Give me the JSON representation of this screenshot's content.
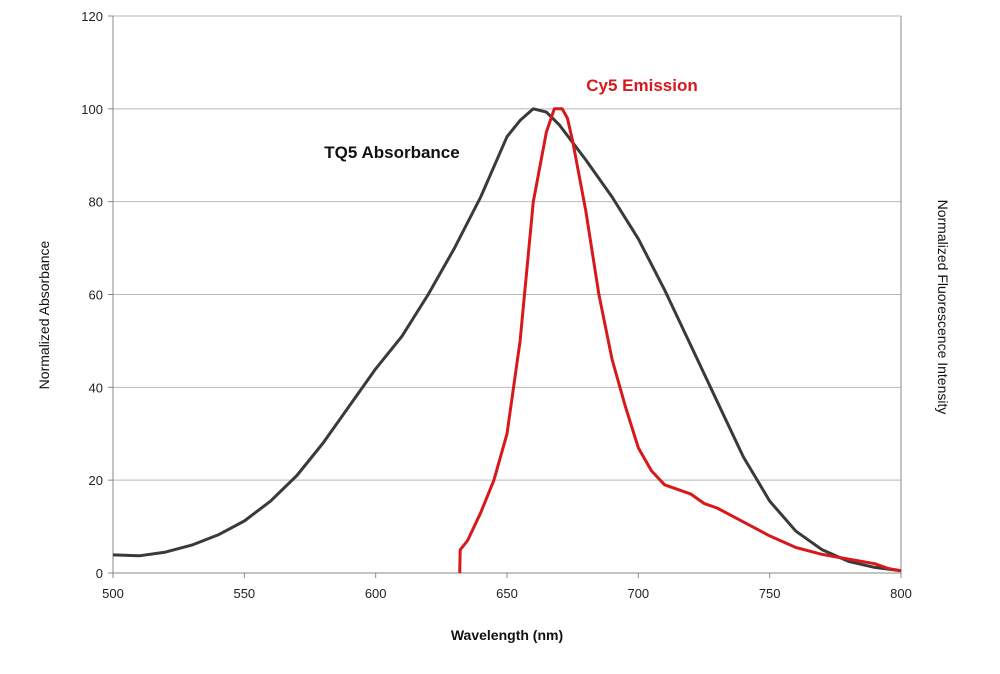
{
  "chart_data": {
    "type": "line",
    "xlabel": "Wavelength (nm)",
    "ylabel": "Normalized Absorbance",
    "y2label": "Normalized Fluorescence Intensity",
    "xlim": [
      500,
      800
    ],
    "ylim": [
      0,
      120
    ],
    "xticks": [
      500,
      550,
      600,
      650,
      700,
      750,
      800
    ],
    "yticks": [
      0,
      20,
      40,
      60,
      80,
      100,
      120
    ],
    "grid": "horizontal",
    "series": [
      {
        "name": "TQ5 Absorbance",
        "color": "#3a3a3a",
        "x": [
          500,
          510,
          520,
          530,
          540,
          550,
          560,
          570,
          580,
          590,
          600,
          610,
          620,
          630,
          640,
          650,
          655,
          660,
          665,
          670,
          680,
          690,
          700,
          710,
          720,
          730,
          740,
          750,
          760,
          770,
          780,
          790,
          800
        ],
        "y": [
          3.9,
          3.7,
          4.5,
          6,
          8.2,
          11.2,
          15.5,
          21,
          28,
          36,
          44,
          51,
          60,
          70,
          81,
          94,
          97.5,
          100,
          99.3,
          96.5,
          89,
          81,
          72,
          61,
          49,
          37,
          25,
          15.5,
          9,
          5,
          2.5,
          1.2,
          0.5
        ]
      },
      {
        "name": "Cy5 Emission",
        "color": "#d7191c",
        "x": [
          632,
          632.2,
          635,
          640,
          645,
          650,
          655,
          660,
          665,
          668,
          671,
          673,
          675,
          680,
          685,
          690,
          695,
          700,
          705,
          710,
          715,
          720,
          725,
          730,
          740,
          750,
          760,
          770,
          780,
          790,
          795,
          800
        ],
        "y": [
          0,
          5,
          7,
          13,
          20,
          30,
          50,
          80,
          95,
          100,
          100,
          98,
          93,
          78,
          60,
          46,
          36,
          27,
          22,
          19,
          18,
          17,
          15,
          14,
          11,
          8,
          5.5,
          4,
          3,
          2,
          1,
          0.5
        ]
      }
    ]
  }
}
